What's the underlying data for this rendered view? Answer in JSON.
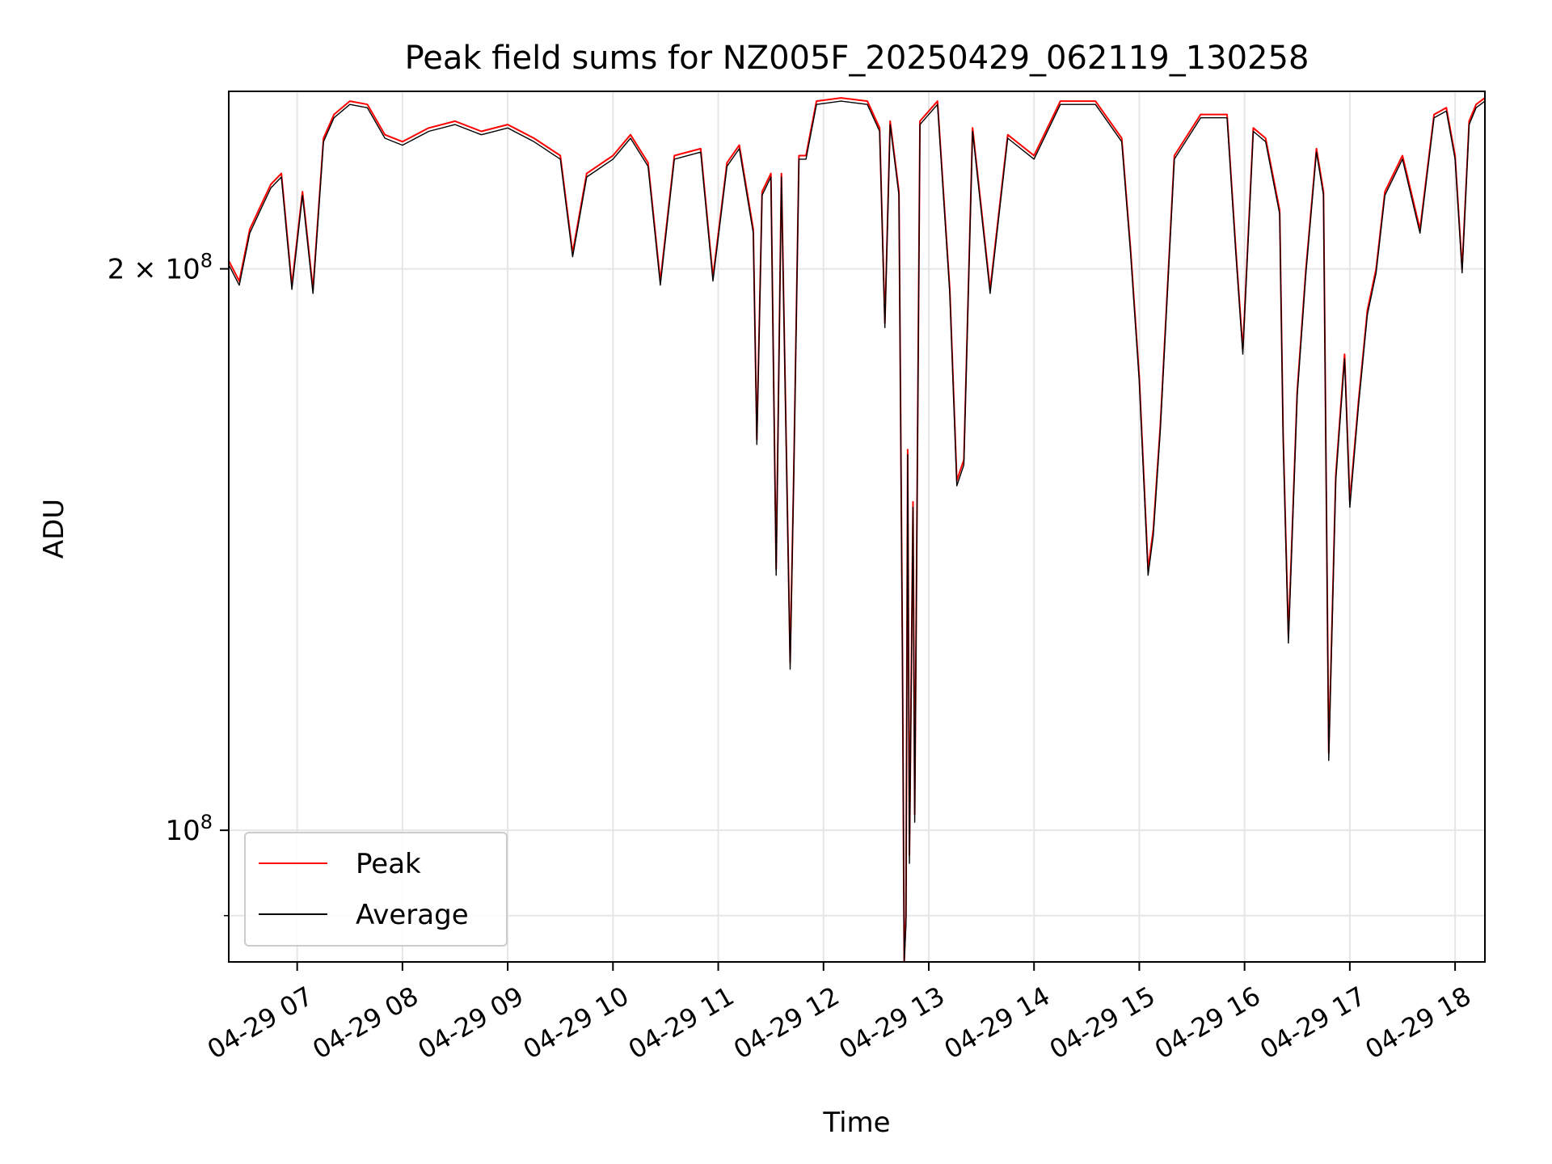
{
  "chart_data": {
    "type": "line",
    "title": "Peak field sums for NZ005F_20250429_062119_130258",
    "xlabel": "Time",
    "ylabel": "ADU",
    "y_scale": "log",
    "ylim": [
      85000000,
      249000000
    ],
    "x_range": [
      "2025-04-29 06:21",
      "2025-04-29 18:17"
    ],
    "x_ticks": [
      {
        "t": "2025-04-29 07:00",
        "label": "04-29 07"
      },
      {
        "t": "2025-04-29 08:00",
        "label": "04-29 08"
      },
      {
        "t": "2025-04-29 09:00",
        "label": "04-29 09"
      },
      {
        "t": "2025-04-29 10:00",
        "label": "04-29 10"
      },
      {
        "t": "2025-04-29 11:00",
        "label": "04-29 11"
      },
      {
        "t": "2025-04-29 12:00",
        "label": "04-29 12"
      },
      {
        "t": "2025-04-29 13:00",
        "label": "04-29 13"
      },
      {
        "t": "2025-04-29 14:00",
        "label": "04-29 14"
      },
      {
        "t": "2025-04-29 15:00",
        "label": "04-29 15"
      },
      {
        "t": "2025-04-29 16:00",
        "label": "04-29 16"
      },
      {
        "t": "2025-04-29 17:00",
        "label": "04-29 17"
      },
      {
        "t": "2025-04-29 18:00",
        "label": "04-29 18"
      }
    ],
    "y_ticks": [
      {
        "value": 200000000,
        "label_main": "2 × 10",
        "label_exp": "8"
      },
      {
        "value": 100000000,
        "label_main": "10",
        "label_exp": "8"
      }
    ],
    "y_minor_ticks": [
      90000000
    ],
    "grid": true,
    "legend_position": "lower-left",
    "colors": {
      "peak": "#ff0000",
      "average": "#000000",
      "grid": "#e6e6e6"
    },
    "series": [
      {
        "name": "Peak",
        "color": "#ff0000",
        "points": [
          [
            "2025-04-29 06:21",
            202000000.0
          ],
          [
            "2025-04-29 06:27",
            197000000.0
          ],
          [
            "2025-04-29 06:33",
            210000000.0
          ],
          [
            "2025-04-29 06:39",
            216000000.0
          ],
          [
            "2025-04-29 06:45",
            222000000.0
          ],
          [
            "2025-04-29 06:51",
            225000000.0
          ],
          [
            "2025-04-29 06:57",
            196000000.0
          ],
          [
            "2025-04-29 07:03",
            220000000.0
          ],
          [
            "2025-04-29 07:09",
            195000000.0
          ],
          [
            "2025-04-29 07:15",
            235000000.0
          ],
          [
            "2025-04-29 07:21",
            242000000.0
          ],
          [
            "2025-04-29 07:30",
            246000000.0
          ],
          [
            "2025-04-29 07:40",
            245000000.0
          ],
          [
            "2025-04-29 07:50",
            236000000.0
          ],
          [
            "2025-04-29 08:00",
            234000000.0
          ],
          [
            "2025-04-29 08:15",
            238000000.0
          ],
          [
            "2025-04-29 08:30",
            240000000.0
          ],
          [
            "2025-04-29 08:45",
            237000000.0
          ],
          [
            "2025-04-29 09:00",
            239000000.0
          ],
          [
            "2025-04-29 09:15",
            235000000.0
          ],
          [
            "2025-04-29 09:30",
            230000000.0
          ],
          [
            "2025-04-29 09:37",
            204000000.0
          ],
          [
            "2025-04-29 09:45",
            225000000.0
          ],
          [
            "2025-04-29 10:00",
            230000000.0
          ],
          [
            "2025-04-29 10:10",
            236000000.0
          ],
          [
            "2025-04-29 10:20",
            228000000.0
          ],
          [
            "2025-04-29 10:27",
            197000000.0
          ],
          [
            "2025-04-29 10:35",
            230000000.0
          ],
          [
            "2025-04-29 10:50",
            232000000.0
          ],
          [
            "2025-04-29 10:57",
            198000000.0
          ],
          [
            "2025-04-29 11:05",
            228000000.0
          ],
          [
            "2025-04-29 11:12",
            233000000.0
          ],
          [
            "2025-04-29 11:20",
            210000000.0
          ],
          [
            "2025-04-29 11:22",
            162000000.0
          ],
          [
            "2025-04-29 11:25",
            220000000.0
          ],
          [
            "2025-04-29 11:30",
            225000000.0
          ],
          [
            "2025-04-29 11:33",
            138000000.0
          ],
          [
            "2025-04-29 11:36",
            225000000.0
          ],
          [
            "2025-04-29 11:41",
            123000000.0
          ],
          [
            "2025-04-29 11:43",
            155000000.0
          ],
          [
            "2025-04-29 11:46",
            230000000.0
          ],
          [
            "2025-04-29 11:50",
            230000000.0
          ],
          [
            "2025-04-29 11:56",
            246000000.0
          ],
          [
            "2025-04-29 12:10",
            247000000.0
          ],
          [
            "2025-04-29 12:25",
            246000000.0
          ],
          [
            "2025-04-29 12:32",
            238000000.0
          ],
          [
            "2025-04-29 12:35",
            187000000.0
          ],
          [
            "2025-04-29 12:38",
            240000000.0
          ],
          [
            "2025-04-29 12:43",
            220000000.0
          ],
          [
            "2025-04-29 12:45",
            125000000.0
          ],
          [
            "2025-04-29 12:46",
            85000000.0
          ],
          [
            "2025-04-29 12:47",
            90000000.0
          ],
          [
            "2025-04-29 12:48",
            160000000.0
          ],
          [
            "2025-04-29 12:49",
            97000000.0
          ],
          [
            "2025-04-29 12:51",
            150000000.0
          ],
          [
            "2025-04-29 12:52",
            102000000.0
          ],
          [
            "2025-04-29 12:55",
            240000000.0
          ],
          [
            "2025-04-29 13:05",
            246000000.0
          ],
          [
            "2025-04-29 13:12",
            195000000.0
          ],
          [
            "2025-04-29 13:16",
            154000000.0
          ],
          [
            "2025-04-29 13:20",
            158000000.0
          ],
          [
            "2025-04-29 13:25",
            238000000.0
          ],
          [
            "2025-04-29 13:35",
            195000000.0
          ],
          [
            "2025-04-29 13:45",
            236000000.0
          ],
          [
            "2025-04-29 14:00",
            230000000.0
          ],
          [
            "2025-04-29 14:15",
            246000000.0
          ],
          [
            "2025-04-29 14:35",
            246000000.0
          ],
          [
            "2025-04-29 14:50",
            235000000.0
          ],
          [
            "2025-04-29 14:55",
            205000000.0
          ],
          [
            "2025-04-29 15:00",
            175000000.0
          ],
          [
            "2025-04-29 15:05",
            138000000.0
          ],
          [
            "2025-04-29 15:08",
            145000000.0
          ],
          [
            "2025-04-29 15:12",
            165000000.0
          ],
          [
            "2025-04-29 15:20",
            230000000.0
          ],
          [
            "2025-04-29 15:35",
            242000000.0
          ],
          [
            "2025-04-29 15:50",
            242000000.0
          ],
          [
            "2025-04-29 15:55",
            205000000.0
          ],
          [
            "2025-04-29 15:59",
            181000000.0
          ],
          [
            "2025-04-29 16:05",
            238000000.0
          ],
          [
            "2025-04-29 16:12",
            235000000.0
          ],
          [
            "2025-04-29 16:20",
            215000000.0
          ],
          [
            "2025-04-29 16:22",
            163000000.0
          ],
          [
            "2025-04-29 16:25",
            127000000.0
          ],
          [
            "2025-04-29 16:30",
            172000000.0
          ],
          [
            "2025-04-29 16:35",
            200000000.0
          ],
          [
            "2025-04-29 16:41",
            232000000.0
          ],
          [
            "2025-04-29 16:45",
            220000000.0
          ],
          [
            "2025-04-29 16:48",
            110000000.0
          ],
          [
            "2025-04-29 16:52",
            155000000.0
          ],
          [
            "2025-04-29 16:57",
            180000000.0
          ],
          [
            "2025-04-29 17:00",
            150000000.0
          ],
          [
            "2025-04-29 17:05",
            170000000.0
          ],
          [
            "2025-04-29 17:10",
            190000000.0
          ],
          [
            "2025-04-29 17:15",
            200000000.0
          ],
          [
            "2025-04-29 17:20",
            220000000.0
          ],
          [
            "2025-04-29 17:30",
            230000000.0
          ],
          [
            "2025-04-29 17:40",
            210000000.0
          ],
          [
            "2025-04-29 17:48",
            242000000.0
          ],
          [
            "2025-04-29 17:55",
            244000000.0
          ],
          [
            "2025-04-29 18:00",
            230000000.0
          ],
          [
            "2025-04-29 18:04",
            200000000.0
          ],
          [
            "2025-04-29 18:08",
            240000000.0
          ],
          [
            "2025-04-29 18:12",
            245000000.0
          ],
          [
            "2025-04-29 18:17",
            247000000.0
          ]
        ]
      },
      {
        "name": "Average",
        "color": "#000000",
        "points": [
          [
            "2025-04-29 06:21",
            201000000.0
          ],
          [
            "2025-04-29 06:27",
            196000000.0
          ],
          [
            "2025-04-29 06:33",
            209000000.0
          ],
          [
            "2025-04-29 06:39",
            215000000.0
          ],
          [
            "2025-04-29 06:45",
            221000000.0
          ],
          [
            "2025-04-29 06:51",
            224000000.0
          ],
          [
            "2025-04-29 06:57",
            195000000.0
          ],
          [
            "2025-04-29 07:03",
            219000000.0
          ],
          [
            "2025-04-29 07:09",
            194000000.0
          ],
          [
            "2025-04-29 07:15",
            234000000.0
          ],
          [
            "2025-04-29 07:21",
            241000000.0
          ],
          [
            "2025-04-29 07:30",
            245000000.0
          ],
          [
            "2025-04-29 07:40",
            244000000.0
          ],
          [
            "2025-04-29 07:50",
            235000000.0
          ],
          [
            "2025-04-29 08:00",
            233000000.0
          ],
          [
            "2025-04-29 08:15",
            237000000.0
          ],
          [
            "2025-04-29 08:30",
            239000000.0
          ],
          [
            "2025-04-29 08:45",
            236000000.0
          ],
          [
            "2025-04-29 09:00",
            238000000.0
          ],
          [
            "2025-04-29 09:15",
            234000000.0
          ],
          [
            "2025-04-29 09:30",
            229000000.0
          ],
          [
            "2025-04-29 09:37",
            203000000.0
          ],
          [
            "2025-04-29 09:45",
            224000000.0
          ],
          [
            "2025-04-29 10:00",
            229000000.0
          ],
          [
            "2025-04-29 10:10",
            235000000.0
          ],
          [
            "2025-04-29 10:20",
            227000000.0
          ],
          [
            "2025-04-29 10:27",
            196000000.0
          ],
          [
            "2025-04-29 10:35",
            229000000.0
          ],
          [
            "2025-04-29 10:50",
            231000000.0
          ],
          [
            "2025-04-29 10:57",
            197000000.0
          ],
          [
            "2025-04-29 11:05",
            227000000.0
          ],
          [
            "2025-04-29 11:12",
            232000000.0
          ],
          [
            "2025-04-29 11:20",
            209000000.0
          ],
          [
            "2025-04-29 11:22",
            161000000.0
          ],
          [
            "2025-04-29 11:25",
            219000000.0
          ],
          [
            "2025-04-29 11:30",
            224000000.0
          ],
          [
            "2025-04-29 11:33",
            137000000.0
          ],
          [
            "2025-04-29 11:36",
            224000000.0
          ],
          [
            "2025-04-29 11:41",
            122000000.0
          ],
          [
            "2025-04-29 11:43",
            154000000.0
          ],
          [
            "2025-04-29 11:46",
            229000000.0
          ],
          [
            "2025-04-29 11:50",
            229000000.0
          ],
          [
            "2025-04-29 11:56",
            245000000.0
          ],
          [
            "2025-04-29 12:10",
            246000000.0
          ],
          [
            "2025-04-29 12:25",
            245000000.0
          ],
          [
            "2025-04-29 12:32",
            237000000.0
          ],
          [
            "2025-04-29 12:35",
            186000000.0
          ],
          [
            "2025-04-29 12:38",
            239000000.0
          ],
          [
            "2025-04-29 12:43",
            219000000.0
          ],
          [
            "2025-04-29 12:45",
            124000000.0
          ],
          [
            "2025-04-29 12:46",
            84000000.0
          ],
          [
            "2025-04-29 12:47",
            89000000.0
          ],
          [
            "2025-04-29 12:48",
            159000000.0
          ],
          [
            "2025-04-29 12:49",
            96000000.0
          ],
          [
            "2025-04-29 12:51",
            149000000.0
          ],
          [
            "2025-04-29 12:52",
            101000000.0
          ],
          [
            "2025-04-29 12:55",
            239000000.0
          ],
          [
            "2025-04-29 13:05",
            245000000.0
          ],
          [
            "2025-04-29 13:12",
            194000000.0
          ],
          [
            "2025-04-29 13:16",
            153000000.0
          ],
          [
            "2025-04-29 13:20",
            157000000.0
          ],
          [
            "2025-04-29 13:25",
            237000000.0
          ],
          [
            "2025-04-29 13:35",
            194000000.0
          ],
          [
            "2025-04-29 13:45",
            235000000.0
          ],
          [
            "2025-04-29 14:00",
            229000000.0
          ],
          [
            "2025-04-29 14:15",
            245000000.0
          ],
          [
            "2025-04-29 14:35",
            245000000.0
          ],
          [
            "2025-04-29 14:50",
            234000000.0
          ],
          [
            "2025-04-29 14:55",
            204000000.0
          ],
          [
            "2025-04-29 15:00",
            174000000.0
          ],
          [
            "2025-04-29 15:05",
            137000000.0
          ],
          [
            "2025-04-29 15:08",
            144000000.0
          ],
          [
            "2025-04-29 15:12",
            164000000.0
          ],
          [
            "2025-04-29 15:20",
            229000000.0
          ],
          [
            "2025-04-29 15:35",
            241000000.0
          ],
          [
            "2025-04-29 15:50",
            241000000.0
          ],
          [
            "2025-04-29 15:55",
            204000000.0
          ],
          [
            "2025-04-29 15:59",
            180000000.0
          ],
          [
            "2025-04-29 16:05",
            237000000.0
          ],
          [
            "2025-04-29 16:12",
            234000000.0
          ],
          [
            "2025-04-29 16:20",
            214000000.0
          ],
          [
            "2025-04-29 16:22",
            162000000.0
          ],
          [
            "2025-04-29 16:25",
            126000000.0
          ],
          [
            "2025-04-29 16:30",
            171000000.0
          ],
          [
            "2025-04-29 16:35",
            199000000.0
          ],
          [
            "2025-04-29 16:41",
            231000000.0
          ],
          [
            "2025-04-29 16:45",
            219000000.0
          ],
          [
            "2025-04-29 16:48",
            109000000.0
          ],
          [
            "2025-04-29 16:52",
            154000000.0
          ],
          [
            "2025-04-29 16:57",
            179000000.0
          ],
          [
            "2025-04-29 17:00",
            149000000.0
          ],
          [
            "2025-04-29 17:05",
            169000000.0
          ],
          [
            "2025-04-29 17:10",
            189000000.0
          ],
          [
            "2025-04-29 17:15",
            199000000.0
          ],
          [
            "2025-04-29 17:20",
            219000000.0
          ],
          [
            "2025-04-29 17:30",
            229000000.0
          ],
          [
            "2025-04-29 17:40",
            209000000.0
          ],
          [
            "2025-04-29 17:48",
            241000000.0
          ],
          [
            "2025-04-29 17:55",
            243000000.0
          ],
          [
            "2025-04-29 18:00",
            229000000.0
          ],
          [
            "2025-04-29 18:04",
            199000000.0
          ],
          [
            "2025-04-29 18:08",
            239000000.0
          ],
          [
            "2025-04-29 18:12",
            244000000.0
          ],
          [
            "2025-04-29 18:17",
            246000000.0
          ]
        ]
      }
    ]
  }
}
